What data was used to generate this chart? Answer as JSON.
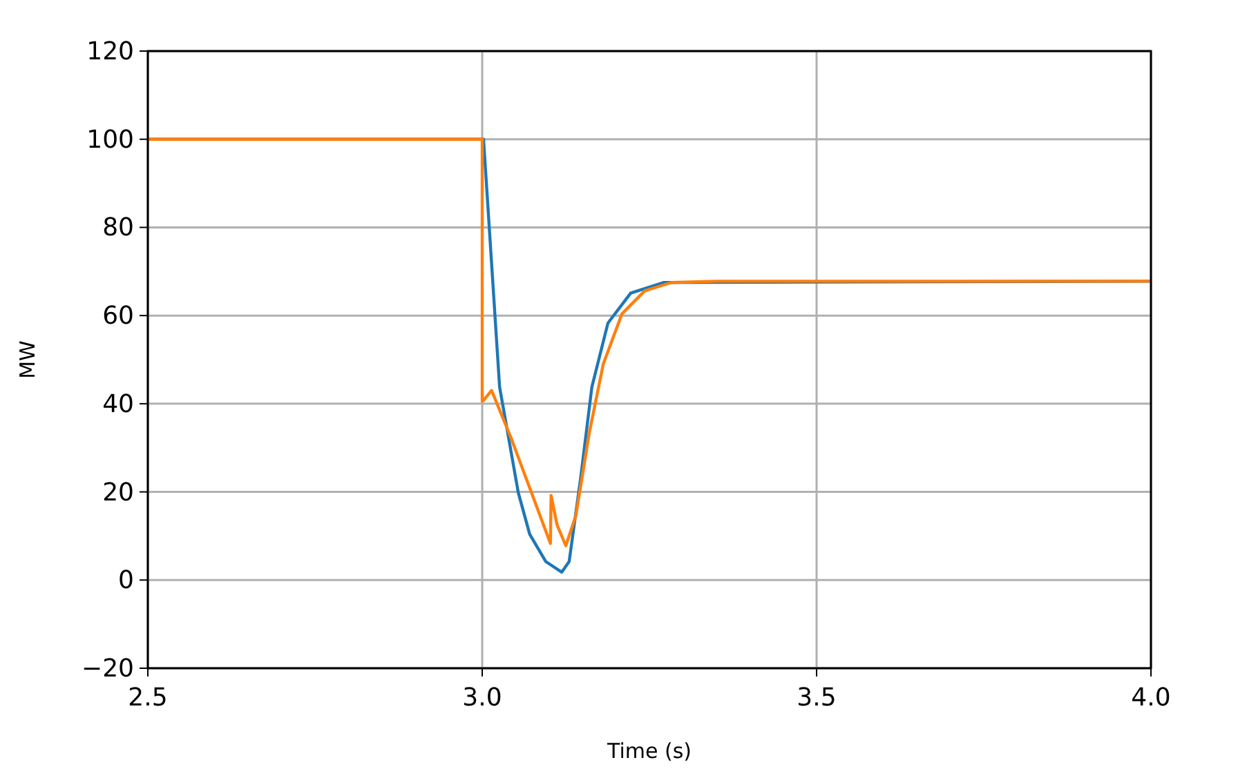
{
  "chart_data": {
    "type": "line",
    "xlabel": "Time (s)",
    "ylabel": "MW",
    "xlim": [
      2.5,
      4.0
    ],
    "ylim": [
      -20,
      120
    ],
    "xticks": [
      {
        "value": 2.5,
        "label": "2.5"
      },
      {
        "value": 3.0,
        "label": "3.0"
      },
      {
        "value": 3.5,
        "label": "3.5"
      },
      {
        "value": 4.0,
        "label": "4.0"
      }
    ],
    "yticks": [
      -20,
      0,
      20,
      40,
      60,
      80,
      100,
      120
    ],
    "grid": true,
    "series": [
      {
        "color": "#1f77b4",
        "x": [
          2.5,
          3.0,
          3.002,
          3.026,
          3.054,
          3.071,
          3.095,
          3.119,
          3.13,
          3.147,
          3.164,
          3.188,
          3.222,
          3.271,
          4.0
        ],
        "values": [
          100,
          100,
          100,
          43.8,
          19.8,
          10.4,
          4.2,
          1.8,
          4.2,
          22.9,
          43.8,
          58.3,
          65.1,
          67.5,
          67.8
        ]
      },
      {
        "color": "#ff7f0e",
        "x": [
          2.5,
          3.0,
          3.0,
          3.001,
          3.014,
          3.043,
          3.102,
          3.103,
          3.112,
          3.125,
          3.14,
          3.16,
          3.181,
          3.209,
          3.243,
          3.283,
          3.35,
          4.0
        ],
        "values": [
          100,
          100,
          40.6,
          40.6,
          43.0,
          32.3,
          8.3,
          19.2,
          12.5,
          7.8,
          14.6,
          33.3,
          49,
          60.4,
          65.6,
          67.5,
          67.8,
          67.8
        ]
      }
    ]
  }
}
